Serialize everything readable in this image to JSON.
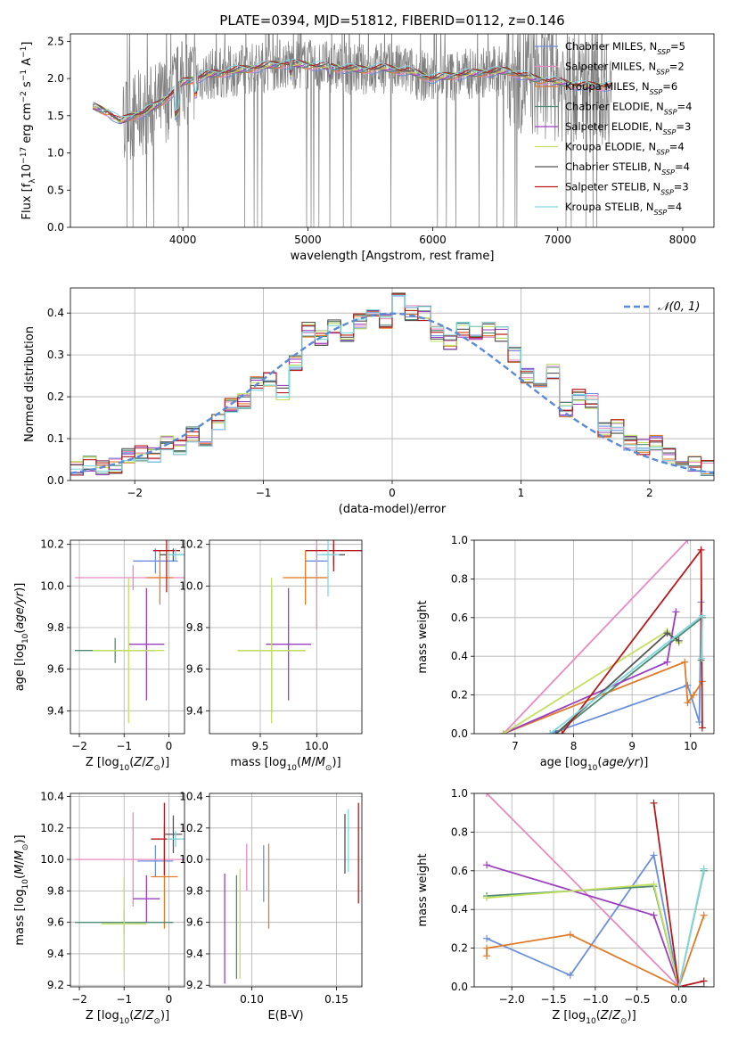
{
  "figure": {
    "title": "PLATE=0394, MJD=51812, FIBERID=0112, z=0.146"
  },
  "chart_data": [
    {
      "id": "spectrum",
      "type": "line",
      "title": "PLATE=0394, MJD=51812, FIBERID=0112, z=0.146",
      "xlabel": "wavelength [Angstrom, rest frame]",
      "ylabel": "Flux [f_λ 10^-17 erg cm^-2 s^-1 A^-1]",
      "xlim": [
        3100,
        8250
      ],
      "ylim": [
        0,
        2.6
      ],
      "xticks": [
        4000,
        5000,
        6000,
        7000,
        8000
      ],
      "yticks": [
        0.0,
        0.5,
        1.0,
        1.5,
        2.0,
        2.5
      ],
      "legend": "upper right",
      "observed_color": "#808080",
      "continuum": {
        "x": [
          3280,
          3400,
          3500,
          3600,
          3700,
          3800,
          3900,
          4000,
          4200,
          4400,
          4600,
          4800,
          5000,
          5200,
          5400,
          5600,
          5800,
          6000,
          6200,
          6400,
          6600,
          6800,
          7000,
          7200,
          7400
        ],
        "y": [
          1.62,
          1.55,
          1.42,
          1.5,
          1.55,
          1.65,
          1.78,
          1.95,
          2.05,
          2.1,
          2.15,
          2.2,
          2.18,
          2.15,
          2.12,
          2.14,
          2.1,
          2.0,
          2.05,
          2.08,
          2.1,
          2.0,
          1.95,
          1.9,
          1.9
        ]
      },
      "series": [
        {
          "name": "Chabrier MILES, N_SSP=5",
          "color": "#6a8fdc"
        },
        {
          "name": "Salpeter MILES, N_SSP=2",
          "color": "#e88ac2"
        },
        {
          "name": "Kroupa MILES, N_SSP=6",
          "color": "#e07b2a"
        },
        {
          "name": "Chabrier ELODIE, N_SSP=4",
          "color": "#4e8a72"
        },
        {
          "name": "Salpeter ELODIE, N_SSP=3",
          "color": "#9b3fc0"
        },
        {
          "name": "Kroupa ELODIE, N_SSP=4",
          "color": "#c2e060"
        },
        {
          "name": "Chabrier STELIB, N_SSP=4",
          "color": "#555555"
        },
        {
          "name": "Salpeter STELIB, N_SSP=3",
          "color": "#b51b1b"
        },
        {
          "name": "Kroupa STELIB, N_SSP=4",
          "color": "#7fd7e0"
        }
      ]
    },
    {
      "id": "residuals",
      "type": "step",
      "xlabel": "(data-model)/error",
      "ylabel": "Normed distribution",
      "xlim": [
        -2.5,
        2.5
      ],
      "ylim": [
        0,
        0.46
      ],
      "xticks": [
        -2,
        -1,
        0,
        1,
        2
      ],
      "yticks": [
        0.0,
        0.1,
        0.2,
        0.3,
        0.4
      ],
      "legend": "upper right",
      "reference": {
        "name": "𝒩(0, 1)",
        "color": "#5b8ad6"
      },
      "bin_edges": [
        -2.5,
        -2.4,
        -2.3,
        -2.2,
        -2.1,
        -2.0,
        -1.9,
        -1.8,
        -1.7,
        -1.6,
        -1.5,
        -1.4,
        -1.3,
        -1.2,
        -1.1,
        -1.0,
        -0.9,
        -0.8,
        -0.7,
        -0.6,
        -0.5,
        -0.4,
        -0.3,
        -0.2,
        -0.1,
        0.0,
        0.1,
        0.2,
        0.3,
        0.4,
        0.5,
        0.6,
        0.7,
        0.8,
        0.9,
        1.0,
        1.1,
        1.2,
        1.3,
        1.4,
        1.5,
        1.6,
        1.7,
        1.8,
        1.9,
        2.0,
        2.1,
        2.2,
        2.3,
        2.4,
        2.5
      ],
      "histogram": [
        0.03,
        0.04,
        0.03,
        0.035,
        0.06,
        0.065,
        0.06,
        0.09,
        0.08,
        0.11,
        0.1,
        0.14,
        0.18,
        0.19,
        0.23,
        0.24,
        0.21,
        0.28,
        0.36,
        0.34,
        0.37,
        0.35,
        0.38,
        0.4,
        0.38,
        0.43,
        0.4,
        0.4,
        0.35,
        0.33,
        0.36,
        0.35,
        0.36,
        0.35,
        0.3,
        0.25,
        0.22,
        0.26,
        0.17,
        0.2,
        0.19,
        0.12,
        0.13,
        0.09,
        0.08,
        0.09,
        0.06,
        0.05,
        0.04,
        0.03
      ]
    },
    {
      "id": "age_vs_Z",
      "type": "scatter",
      "xlabel": "Z [log10(Z/Z_sun)]",
      "ylabel": "age  [log10(age/yr)]",
      "xlim": [
        -2.2,
        0.35
      ],
      "ylim": [
        9.29,
        10.22
      ],
      "xticks": [
        -2,
        -1,
        0
      ],
      "yticks": [
        9.4,
        9.6,
        9.8,
        10.0,
        10.2
      ],
      "points": [
        {
          "series": 0,
          "x": -0.3,
          "y": 10.12,
          "xerr": 0.5,
          "yerr": 0.06
        },
        {
          "series": 1,
          "x": -0.8,
          "y": 10.04,
          "xerr": 1.3,
          "yerr": 0.06
        },
        {
          "series": 2,
          "x": -0.2,
          "y": 10.04,
          "xerr": 0.3,
          "yerr": 0.13
        },
        {
          "series": 3,
          "x": -1.2,
          "y": 9.69,
          "xerr": 0.9,
          "yerr": 0.06
        },
        {
          "series": 4,
          "x": -0.5,
          "y": 9.72,
          "xerr": 0.4,
          "yerr": 0.27
        },
        {
          "series": 5,
          "x": -0.9,
          "y": 9.69,
          "xerr": 0.8,
          "yerr": 0.35
        },
        {
          "series": 6,
          "x": 0.1,
          "y": 10.15,
          "xerr": 0.3,
          "yerr": 0.03
        },
        {
          "series": 7,
          "x": -0.05,
          "y": 10.17,
          "xerr": 0.3,
          "yerr": 0.2
        },
        {
          "series": 8,
          "x": 0.15,
          "y": 10.15,
          "xerr": 0.2,
          "yerr": 0.03
        }
      ]
    },
    {
      "id": "age_vs_mass",
      "type": "scatter",
      "xlabel": "mass [log10(M/M_sun)]",
      "ylabel": "",
      "xlim": [
        9.05,
        10.4
      ],
      "ylim": [
        9.29,
        10.22
      ],
      "xticks": [
        9.5,
        10.0
      ],
      "yticks": [
        9.4,
        9.6,
        9.8,
        10.0,
        10.2
      ],
      "points": [
        {
          "series": 0,
          "x": 10.0,
          "y": 10.12,
          "xerr": 0.1,
          "yerr": 0.06
        },
        {
          "series": 1,
          "x": 10.0,
          "y": 10.04,
          "xerr": 0.1,
          "yerr": 0.25
        },
        {
          "series": 2,
          "x": 9.9,
          "y": 10.04,
          "xerr": 0.2,
          "yerr": 0.13
        },
        {
          "series": 3,
          "x": 9.6,
          "y": 9.69,
          "xerr": 0.3,
          "yerr": 0.3
        },
        {
          "series": 4,
          "x": 9.75,
          "y": 9.72,
          "xerr": 0.2,
          "yerr": 0.27
        },
        {
          "series": 5,
          "x": 9.6,
          "y": 9.69,
          "xerr": 0.3,
          "yerr": 0.35
        },
        {
          "series": 6,
          "x": 10.15,
          "y": 10.15,
          "xerr": 0.1,
          "yerr": 0.05
        },
        {
          "series": 7,
          "x": 10.15,
          "y": 10.17,
          "xerr": 0.25,
          "yerr": 0.1
        },
        {
          "series": 8,
          "x": 10.1,
          "y": 10.15,
          "xerr": 0.1,
          "yerr": 0.2
        }
      ]
    },
    {
      "id": "mass_weight_vs_age",
      "type": "line",
      "xlabel": "age  [log10(age/yr)]",
      "ylabel": "mass weight",
      "xlim": [
        6.3,
        10.4
      ],
      "ylim": [
        0,
        1
      ],
      "xticks": [
        7,
        8,
        9,
        10
      ],
      "yticks": [
        0.0,
        0.2,
        0.4,
        0.6,
        0.8,
        1.0
      ],
      "series": [
        {
          "series": 0,
          "x": [
            7.6,
            9.95,
            10.15,
            10.18
          ],
          "y": [
            0.0,
            0.25,
            0.06,
            0.68
          ]
        },
        {
          "series": 1,
          "x": [
            6.8,
            9.95
          ],
          "y": [
            0.0,
            1.0
          ]
        },
        {
          "series": 2,
          "x": [
            6.8,
            9.9,
            9.95,
            10.05,
            10.2
          ],
          "y": [
            0.0,
            0.37,
            0.16,
            0.2,
            0.27
          ]
        },
        {
          "series": 3,
          "x": [
            7.7,
            10.2,
            10.18
          ],
          "y": [
            0.0,
            0.6,
            0.38
          ]
        },
        {
          "series": 4,
          "x": [
            6.8,
            9.6,
            9.75
          ],
          "y": [
            0.0,
            0.37,
            0.63
          ]
        },
        {
          "series": 5,
          "x": [
            6.8,
            9.6,
            9.8
          ],
          "y": [
            0.0,
            0.53,
            0.47
          ]
        },
        {
          "series": 6,
          "x": [
            7.7,
            9.6,
            9.8
          ],
          "y": [
            0.0,
            0.52,
            0.48
          ]
        },
        {
          "series": 7,
          "x": [
            7.8,
            10.18,
            10.2
          ],
          "y": [
            0.0,
            0.95,
            0.03
          ]
        },
        {
          "series": 8,
          "x": [
            7.6,
            10.2,
            10.19
          ],
          "y": [
            0.0,
            0.61,
            0.39
          ]
        }
      ]
    },
    {
      "id": "mass_vs_Z",
      "type": "scatter",
      "xlabel": "Z [log10(Z/Z_sun)]",
      "ylabel": "mass [log10(M/M_sun)]",
      "xlim": [
        -2.2,
        0.35
      ],
      "ylim": [
        9.19,
        10.42
      ],
      "xticks": [
        -2,
        -1,
        0
      ],
      "yticks": [
        9.2,
        9.4,
        9.6,
        9.8,
        10.0,
        10.2,
        10.4
      ],
      "points": [
        {
          "series": 0,
          "x": -0.3,
          "y": 9.99,
          "xerr": 0.4,
          "yerr": 0.1
        },
        {
          "series": 1,
          "x": -0.8,
          "y": 10.0,
          "xerr": 1.3,
          "yerr": 0.3
        },
        {
          "series": 2,
          "x": -0.1,
          "y": 9.89,
          "xerr": 0.3,
          "yerr": 0.33
        },
        {
          "series": 3,
          "x": -1.0,
          "y": 9.6,
          "xerr": 1.1,
          "yerr": 0.08
        },
        {
          "series": 4,
          "x": -0.5,
          "y": 9.75,
          "xerr": 0.3,
          "yerr": 0.15
        },
        {
          "series": 5,
          "x": -1.0,
          "y": 9.59,
          "xerr": 0.5,
          "yerr": 0.3
        },
        {
          "series": 6,
          "x": 0.1,
          "y": 10.16,
          "xerr": 0.2,
          "yerr": 0.12
        },
        {
          "series": 7,
          "x": -0.1,
          "y": 10.13,
          "xerr": 0.3,
          "yerr": 0.23
        },
        {
          "series": 8,
          "x": 0.15,
          "y": 10.13,
          "xerr": 0.2,
          "yerr": 0.05
        }
      ]
    },
    {
      "id": "mass_vs_ebv",
      "type": "errorbar",
      "xlabel": "E(B-V)",
      "ylabel": "",
      "xlim": [
        0.075,
        0.165
      ],
      "ylim": [
        9.19,
        10.42
      ],
      "xticks": [
        0.1,
        0.15
      ],
      "yticks": [
        9.2,
        9.4,
        9.6,
        9.8,
        10.0,
        10.2,
        10.4
      ],
      "points": [
        {
          "series": 0,
          "x": 0.107,
          "y": 9.91,
          "yerr": 0.18
        },
        {
          "series": 1,
          "x": 0.097,
          "y": 9.95,
          "yerr": 0.15
        },
        {
          "series": 2,
          "x": 0.11,
          "y": 9.83,
          "yerr": 0.27
        },
        {
          "series": 3,
          "x": 0.091,
          "y": 9.57,
          "yerr": 0.33
        },
        {
          "series": 4,
          "x": 0.084,
          "y": 9.56,
          "yerr": 0.35
        },
        {
          "series": 5,
          "x": 0.093,
          "y": 9.59,
          "yerr": 0.35
        },
        {
          "series": 6,
          "x": 0.155,
          "y": 10.1,
          "yerr": 0.19
        },
        {
          "series": 7,
          "x": 0.163,
          "y": 10.04,
          "yerr": 0.32
        },
        {
          "series": 8,
          "x": 0.157,
          "y": 10.12,
          "yerr": 0.2
        }
      ]
    },
    {
      "id": "mass_weight_vs_Z",
      "type": "line",
      "xlabel": "Z [log10(Z/Z_sun)]",
      "ylabel": "mass weight",
      "xlim": [
        -2.45,
        0.42
      ],
      "ylim": [
        0,
        1
      ],
      "xticks": [
        -2.0,
        -1.5,
        -1.0,
        -0.5,
        0.0
      ],
      "yticks": [
        0.0,
        0.2,
        0.4,
        0.6,
        0.8,
        1.0
      ],
      "series": [
        {
          "series": 0,
          "x": [
            -2.3,
            -1.3,
            -0.3,
            0.0
          ],
          "y": [
            0.25,
            0.06,
            0.68,
            0.0
          ]
        },
        {
          "series": 1,
          "x": [
            -2.3,
            0.0
          ],
          "y": [
            1.0,
            0.0
          ]
        },
        {
          "series": 2,
          "x": [
            -2.3,
            -2.3,
            -1.3,
            0.0,
            0.3
          ],
          "y": [
            0.16,
            0.2,
            0.27,
            0.0,
            0.37
          ]
        },
        {
          "series": 3,
          "x": [
            -2.3,
            -0.3,
            0.0,
            0.3
          ],
          "y": [
            0.47,
            0.52,
            0.0,
            0.6
          ]
        },
        {
          "series": 4,
          "x": [
            -2.3,
            -0.3,
            0.0
          ],
          "y": [
            0.63,
            0.37,
            0.0
          ]
        },
        {
          "series": 5,
          "x": [
            -2.3,
            -0.3,
            0.0,
            0.3
          ],
          "y": [
            0.46,
            0.53,
            0.0,
            0.61
          ]
        },
        {
          "series": 6,
          "x": [
            0.0,
            0.3
          ],
          "y": [
            0.0,
            0.0
          ]
        },
        {
          "series": 7,
          "x": [
            -0.3,
            0.0,
            0.3
          ],
          "y": [
            0.95,
            0.0,
            0.03
          ]
        },
        {
          "series": 8,
          "x": [
            0.0,
            0.3
          ],
          "y": [
            0.0,
            0.61
          ]
        }
      ]
    }
  ]
}
